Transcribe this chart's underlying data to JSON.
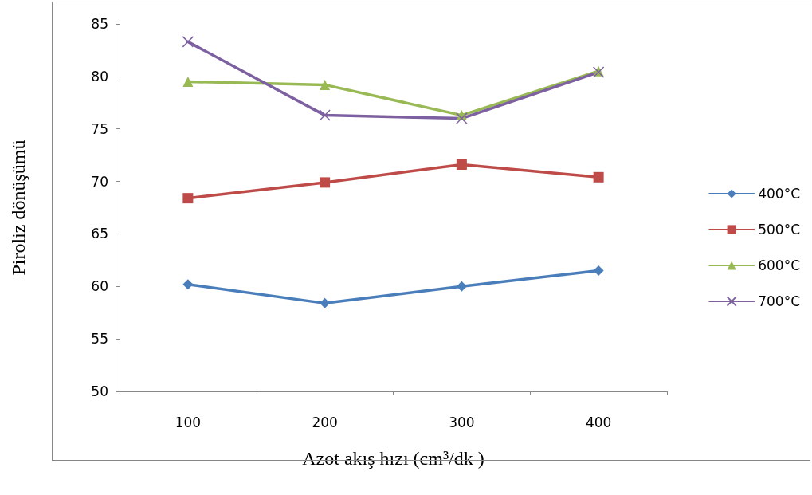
{
  "chart_data": {
    "type": "line",
    "xlabel": "Azot akış hızı (cm³/dk )",
    "ylabel": "Piroliz dönüşümü",
    "categories": [
      "100",
      "200",
      "300",
      "400"
    ],
    "series": [
      {
        "name": "400°C",
        "color": "#4a7ebb",
        "marker": "diamond",
        "values": [
          60.2,
          58.4,
          60.0,
          61.5
        ]
      },
      {
        "name": "500°C",
        "color": "#be4b48",
        "marker": "square",
        "values": [
          68.4,
          69.9,
          71.6,
          70.4
        ]
      },
      {
        "name": "600°C",
        "color": "#98b954",
        "marker": "triangle",
        "values": [
          79.5,
          79.2,
          76.3,
          80.5
        ]
      },
      {
        "name": "700°C",
        "color": "#7d60a0",
        "marker": "cross",
        "values": [
          83.3,
          76.3,
          76.0,
          80.4
        ]
      }
    ],
    "ylim": [
      50,
      85
    ],
    "yticks": [
      50,
      55,
      60,
      65,
      70,
      75,
      80,
      85
    ],
    "grid": false,
    "legend": "right",
    "line_style": "solid"
  }
}
